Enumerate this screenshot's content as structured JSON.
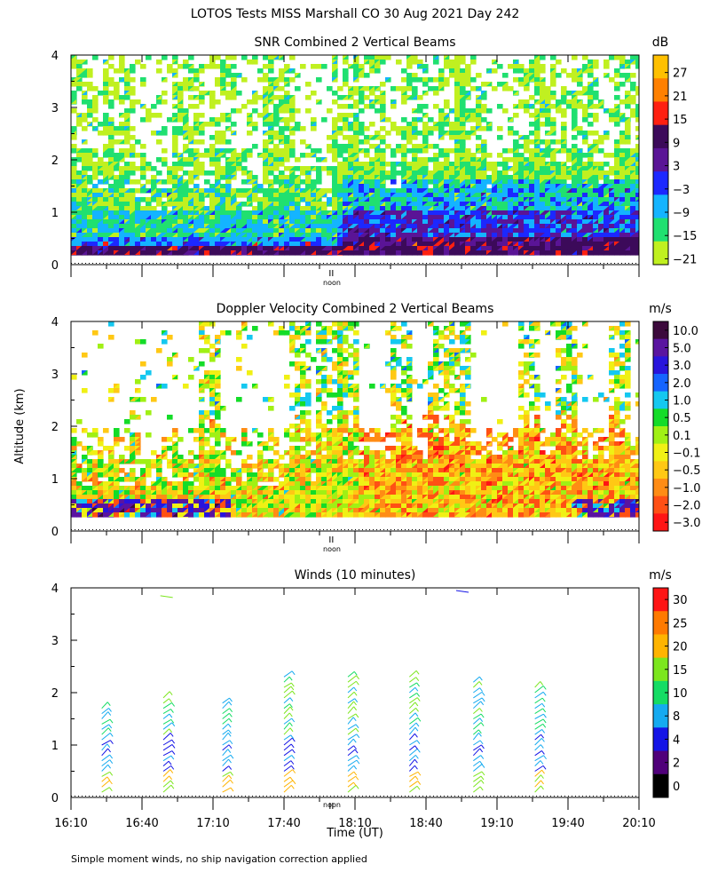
{
  "title": "LOTOS Tests MISS Marshall CO  30 Aug 2021 Day 242",
  "footnote": "Simple moment winds, no ship navigation correction applied",
  "chart_data": [
    {
      "type": "heatmap",
      "title": "SNR Combined 2 Vertical Beams",
      "ylim": [
        0,
        4
      ],
      "y_ticks": [
        "0",
        "1",
        "2",
        "3",
        "4"
      ],
      "noon_label": "noon",
      "colorbar": {
        "unit": "dB",
        "labels": [
          "27",
          "21",
          "15",
          "9",
          "3",
          "−3",
          "−9",
          "−15",
          "−21"
        ],
        "colors": [
          "#ffc000",
          "#ff8000",
          "#ff2010",
          "#3c0a5a",
          "#5a1496",
          "#1c28ff",
          "#14b4ff",
          "#20e070",
          "#c0f020"
        ]
      }
    },
    {
      "type": "heatmap",
      "title": "Doppler Velocity Combined 2 Vertical Beams",
      "ylabel": "Altitude (km)",
      "ylim": [
        0,
        4
      ],
      "y_ticks": [
        "0",
        "1",
        "2",
        "3",
        "4"
      ],
      "noon_label": "noon",
      "colorbar": {
        "unit": "m/s",
        "labels": [
          "10.0",
          "5.0",
          "3.0",
          "2.0",
          "1.0",
          "0.5",
          "0.1",
          "−0.1",
          "−0.5",
          "−1.0",
          "−2.0",
          "−3.0"
        ],
        "colors": [
          "#3c0a3c",
          "#5a14a0",
          "#2814dc",
          "#1464ff",
          "#14c8f0",
          "#14dc28",
          "#a0f014",
          "#f0f014",
          "#ffc814",
          "#ff8c14",
          "#ff5014",
          "#ff1414"
        ]
      }
    },
    {
      "type": "scatter",
      "title": "Winds (10 minutes)",
      "xlabel": "Time (UT)",
      "ylim": [
        0,
        4
      ],
      "y_ticks": [
        "0",
        "1",
        "2",
        "3",
        "4"
      ],
      "x_ticks": [
        "16:10",
        "16:40",
        "17:10",
        "17:40",
        "18:10",
        "18:40",
        "19:10",
        "19:40",
        "20:10"
      ],
      "noon_label": "noon",
      "profile_times": [
        "16:23",
        "16:49",
        "17:14",
        "17:40",
        "18:07",
        "18:33",
        "19:00",
        "19:26"
      ],
      "colorbar": {
        "unit": "m/s",
        "labels": [
          "30",
          "25",
          "20",
          "15",
          "10",
          "8",
          "4",
          "2",
          "0"
        ],
        "colors": [
          "#ff1414",
          "#ff7a00",
          "#ffb400",
          "#7ce61e",
          "#14dc64",
          "#14aaf0",
          "#1414e6",
          "#50007a",
          "#000000"
        ]
      }
    }
  ]
}
